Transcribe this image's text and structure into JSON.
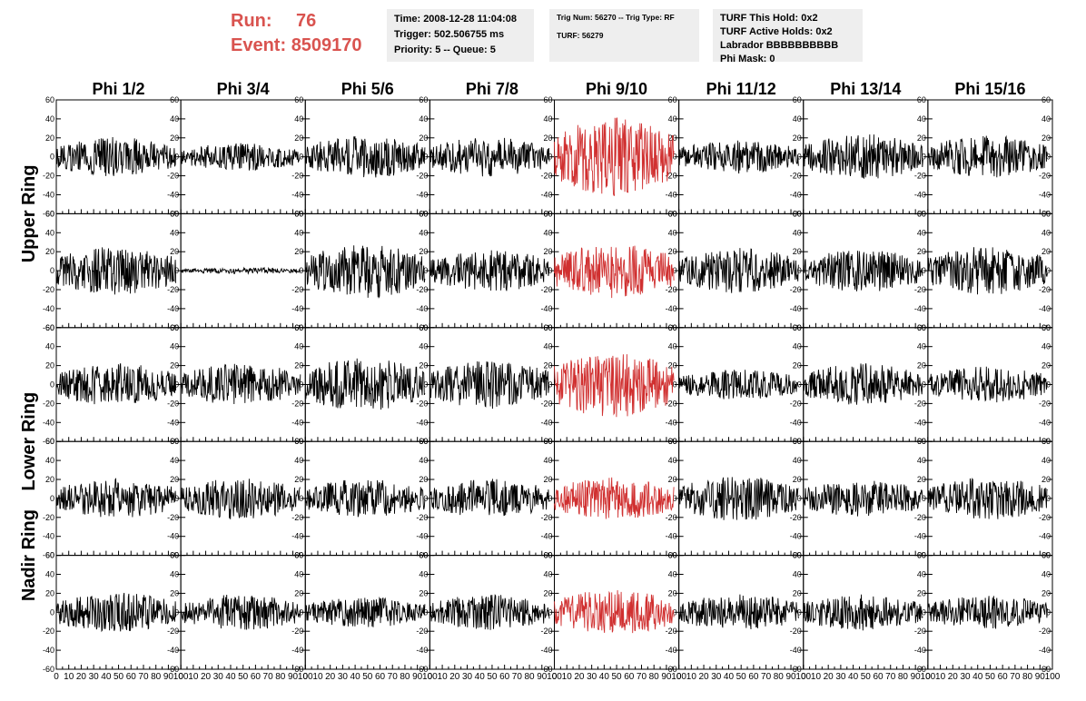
{
  "header": {
    "run_label": "Run:",
    "run_value": "76",
    "event_label": "Event:",
    "event_value": "8509170",
    "info1": {
      "time": "Time: 2008-12-28 11:04:08",
      "trigger": "Trigger: 502.506755 ms",
      "priority": "Priority: 5 -- Queue: 5"
    },
    "info2": {
      "trig": "Trig Num: 56270 -- Trig Type: RF",
      "turf": "TURF: 56279"
    },
    "info3": {
      "hold": "TURF This Hold: 0x2",
      "active": "TURF Active Holds: 0x2",
      "labrador": "Labrador BBBBBBBBBB",
      "phimask": "Phi Mask: 0"
    }
  },
  "chart_data": {
    "type": "line",
    "columns": [
      "Phi 1/2",
      "Phi 3/4",
      "Phi 5/6",
      "Phi 7/8",
      "Phi 9/10",
      "Phi 11/12",
      "Phi 13/14",
      "Phi 15/16"
    ],
    "ring_labels": [
      "Upper Ring",
      "Lower Ring",
      "Nadir Ring"
    ],
    "rows": 5,
    "xlim": [
      0,
      100
    ],
    "ylim": [
      -60,
      60
    ],
    "x_ticks": [
      0,
      10,
      20,
      30,
      40,
      50,
      60,
      70,
      80,
      90,
      100
    ],
    "y_ticks": [
      -60,
      -40,
      -20,
      0,
      20,
      40,
      60
    ],
    "trace_x_range": [
      0,
      96
    ],
    "trace_points": 230,
    "default_color": "#000000",
    "highlight_color": "#d03030",
    "highlight_column": "Phi 9/10",
    "amplitudes": [
      [
        13,
        9,
        14,
        13,
        26,
        11,
        15,
        14
      ],
      [
        16,
        2,
        18,
        14,
        18,
        15,
        14,
        16
      ],
      [
        14,
        14,
        18,
        16,
        22,
        10,
        14,
        12
      ],
      [
        13,
        14,
        13,
        13,
        14,
        15,
        12,
        14
      ],
      [
        13,
        12,
        10,
        12,
        15,
        12,
        12,
        11
      ]
    ]
  }
}
